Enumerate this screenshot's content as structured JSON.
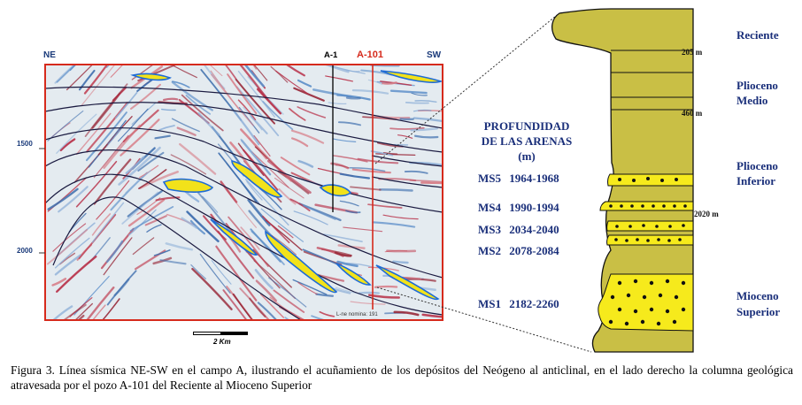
{
  "seismic_section": {
    "direction_left": "NE",
    "direction_right": "SW",
    "well_a1_label": "A-1",
    "well_a101_label": "A-101",
    "depth_ticks": [
      "1500",
      "2000"
    ],
    "scale_bar_label": "2 Km",
    "bottom_annotation": "L-ne nomina: 191",
    "colors": {
      "frame": "#d62a1c",
      "sand_fill": "#f2e21a",
      "sand_outline": "#1e6bd6",
      "horizon": "#1a1a40"
    }
  },
  "sands_table": {
    "title_line1": "PROFUNDIDAD",
    "title_line2": "DE LAS ARENAS",
    "title_line3": "(m)",
    "rows": [
      {
        "name": "MS5",
        "range": "1964-1968"
      },
      {
        "name": "MS4",
        "range": "1990-1994"
      },
      {
        "name": "MS3",
        "range": "2034-2040"
      },
      {
        "name": "MS2",
        "range": "2078-2084"
      },
      {
        "name": "MS1",
        "range": "2182-2260"
      }
    ]
  },
  "column": {
    "depth_marks": [
      "205 m",
      "460 m",
      "2020 m"
    ],
    "colors": {
      "shale": "#c9bf45",
      "sand": "#f6ea1c",
      "dots": "#111111"
    }
  },
  "epochs": [
    {
      "lines": [
        "Reciente"
      ]
    },
    {
      "lines": [
        "Plioceno",
        "Medio"
      ]
    },
    {
      "lines": [
        "Plioceno",
        "Inferior"
      ]
    },
    {
      "lines": [
        "Mioceno",
        "Superior"
      ]
    }
  ],
  "caption": "Figura 3. Línea sísmica NE-SW en el campo A, ilustrando el acuñamiento de los depósitos del Neógeno al anticlinal, en el lado derecho la columna geológica atravesada por el pozo A-101 del Reciente al Mioceno Superior"
}
